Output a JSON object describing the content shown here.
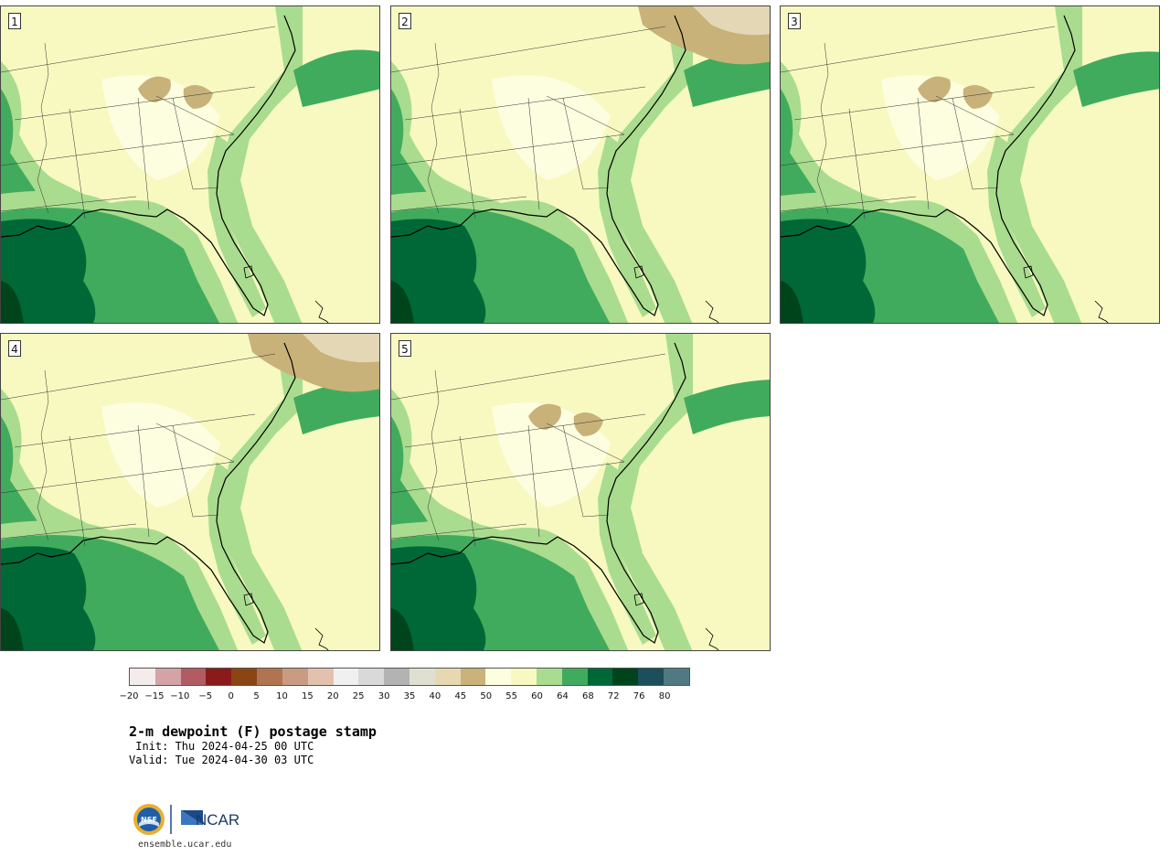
{
  "panels": [
    {
      "label": "1"
    },
    {
      "label": "2"
    },
    {
      "label": "3"
    },
    {
      "label": "4"
    },
    {
      "label": "5"
    }
  ],
  "colors": {
    "c50": "#fdfde0",
    "c55": "#f7f9c0",
    "c60": "#a9dc8e",
    "c64": "#41ab5d",
    "c68": "#006837",
    "c72": "#00441b",
    "dry": "#c8b27a",
    "dry2": "#e3d7b5"
  },
  "colorbar": {
    "colors": [
      "#f4eceb",
      "#d4a3a6",
      "#b25b62",
      "#8b1a1a",
      "#8b4513",
      "#b07550",
      "#c99b80",
      "#e2c2ad",
      "#f0f0f0",
      "#d9d9d9",
      "#b3b3b3",
      "#e0e0d0",
      "#e6d9b1",
      "#cbb27a",
      "#fdfde0",
      "#f7f9c0",
      "#a9dc8e",
      "#41ab5d",
      "#006837",
      "#00441b",
      "#1b4f5c",
      "#4f7a82"
    ],
    "ticks": [
      "−20",
      "−15",
      "−10",
      "−5",
      "0",
      "5",
      "10",
      "15",
      "20",
      "25",
      "30",
      "35",
      "40",
      "45",
      "50",
      "55",
      "60",
      "64",
      "68",
      "72",
      "76",
      "80"
    ]
  },
  "title": "2-m dewpoint (F) postage stamp",
  "init": " Init: Thu 2024-04-25 00 UTC",
  "valid": "Valid: Tue 2024-04-30 03 UTC",
  "logo": {
    "nsf": "NSF",
    "ncar": "NCAR"
  },
  "website": "ensemble.ucar.edu"
}
